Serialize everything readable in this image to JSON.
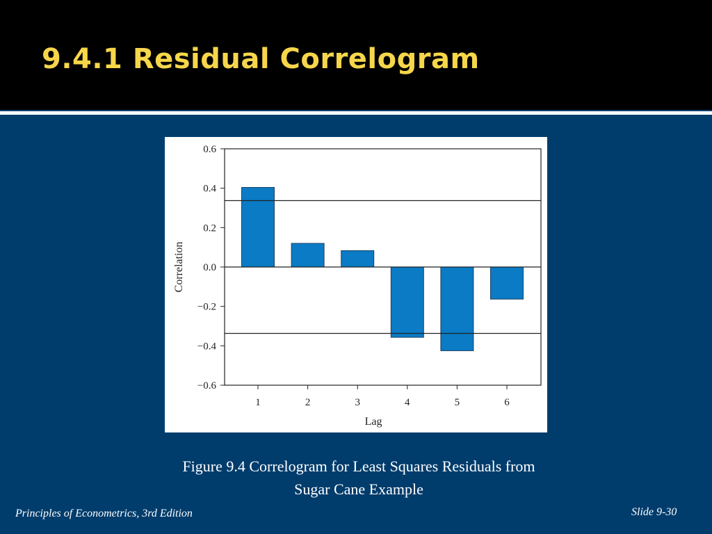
{
  "slide": {
    "title": "9.4.1 Residual Correlogram",
    "caption_line1": "Figure 9.4  Correlogram for Least Squares Residuals from",
    "caption_line2": "Sugar Cane Example",
    "footer_left": "Principles of Econometrics, 3rd Edition",
    "footer_right": "Slide 9-30"
  },
  "colors": {
    "background": "#003c6c",
    "header": "#000000",
    "title": "#f6d64a",
    "bar": "#0a7bc4"
  },
  "chart_data": {
    "type": "bar",
    "xlabel": "Lag",
    "ylabel": "Correlation",
    "categories": [
      "1",
      "2",
      "3",
      "4",
      "5",
      "6"
    ],
    "values": [
      0.404,
      0.12,
      0.083,
      -0.357,
      -0.425,
      -0.163
    ],
    "ylim": [
      -0.6,
      0.6
    ],
    "yticks": [
      0.6,
      0.4,
      0.2,
      0.0,
      -0.2,
      -0.4,
      -0.6
    ],
    "ytick_labels": [
      "0.6",
      "0.4",
      "0.2",
      "0.0",
      "−0.2",
      "−0.4",
      "−0.6"
    ],
    "significance_bounds": [
      0.337,
      -0.337
    ],
    "grid": false
  }
}
